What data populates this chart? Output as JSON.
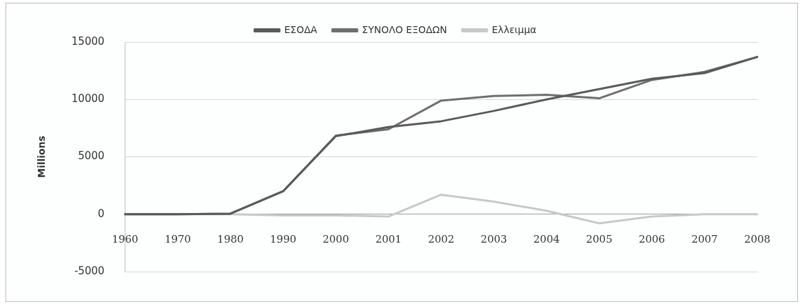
{
  "chart_data": {
    "type": "line",
    "ylabel": "Millions",
    "categories": [
      "1960",
      "1970",
      "1980",
      "1990",
      "2000",
      "2001",
      "2002",
      "2003",
      "2004",
      "2005",
      "2006",
      "2007",
      "2008"
    ],
    "series": [
      {
        "name": "ΕΣΟΔΑ",
        "color": "#5a5a5a",
        "values": [
          0,
          0,
          50,
          2000,
          6800,
          7600,
          8100,
          9000,
          10000,
          10900,
          11800,
          12300,
          13700
        ]
      },
      {
        "name": "ΣΥΝΟΛΟ ΕΞΟΔΩΝ",
        "color": "#6e6e6e",
        "values": [
          0,
          0,
          50,
          2000,
          6850,
          7400,
          9900,
          10300,
          10400,
          10100,
          11700,
          12400,
          13700
        ]
      },
      {
        "name": "Ελλειμμα",
        "color": "#c8c8c8",
        "values": [
          0,
          0,
          0,
          -100,
          -100,
          -200,
          1700,
          1100,
          300,
          -800,
          -200,
          0,
          0
        ]
      }
    ],
    "ylim": [
      -5000,
      15000
    ],
    "yticks": [
      -5000,
      0,
      5000,
      10000,
      15000
    ],
    "grid": "y",
    "legend": "top",
    "marker": "none",
    "line_style": "solid"
  }
}
